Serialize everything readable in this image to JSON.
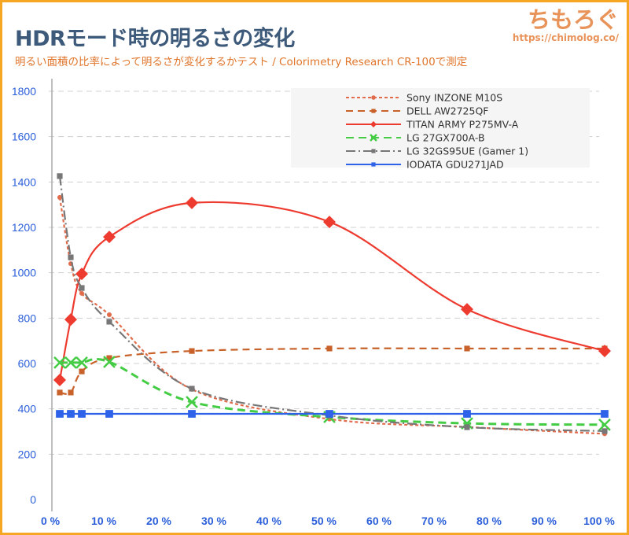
{
  "header": {
    "title": "HDRモード時の明るさの変化",
    "subtitle": "明るい面積の比率によって明るさが変化するかテスト / Colorimetry Research CR-100で測定",
    "logo_text": "ちもろぐ",
    "logo_url": "https://chimolog.co/"
  },
  "chart_data": {
    "type": "line",
    "title": "HDRモード時の明るさの変化",
    "xlabel": "",
    "ylabel": "",
    "x": [
      1,
      3,
      5,
      10,
      25,
      50,
      75,
      100
    ],
    "xlim": [
      0,
      100
    ],
    "ylim": [
      0,
      1800
    ],
    "xticks": [
      0,
      10,
      20,
      30,
      40,
      50,
      60,
      70,
      80,
      90,
      100
    ],
    "xtick_labels": [
      "0 %",
      "10 %",
      "20 %",
      "30 %",
      "40 %",
      "50 %",
      "60 %",
      "70 %",
      "80 %",
      "90 %",
      "100 %"
    ],
    "yticks": [
      0,
      200,
      400,
      600,
      800,
      1000,
      1200,
      1400,
      1600,
      1800
    ],
    "ytick_labels": [
      "0",
      "200",
      "400",
      "600",
      "800",
      "1000",
      "1200",
      "1400",
      "1600",
      "1800"
    ],
    "grid": true,
    "legend_position": "top-right",
    "series": [
      {
        "name": "Sony INZONE M10S",
        "color": "#e06c4c",
        "dash": "4,3",
        "marker": "circle",
        "values": [
          1332,
          1040,
          909,
          815,
          486,
          355,
          320,
          290
        ]
      },
      {
        "name": "DELL AW2725QF",
        "color": "#c8622a",
        "dash": "9,6",
        "marker": "square",
        "values": [
          472,
          472,
          565,
          624,
          655,
          666,
          666,
          666
        ]
      },
      {
        "name": "TITAN ARMY P275MV-A",
        "color": "#ee3b30",
        "dash": "",
        "marker": "diamond",
        "values": [
          527,
          794,
          995,
          1158,
          1308,
          1224,
          839,
          655
        ]
      },
      {
        "name": "LG 27GX700A-B",
        "color": "#44cc44",
        "dash": "10,6",
        "marker": "x",
        "values": [
          604,
          604,
          604,
          607,
          430,
          364,
          336,
          330
        ]
      },
      {
        "name": "LG 32GS95UE (Gamer 1)",
        "color": "#777777",
        "dash": "12,4,2,4",
        "marker": "square",
        "values": [
          1426,
          1068,
          933,
          784,
          489,
          371,
          319,
          302
        ]
      },
      {
        "name": "IODATA GDU271JAD",
        "color": "#2e62e8",
        "dash": "",
        "marker": "square",
        "values": [
          378,
          378,
          378,
          378,
          378,
          378,
          378,
          378
        ]
      }
    ]
  }
}
